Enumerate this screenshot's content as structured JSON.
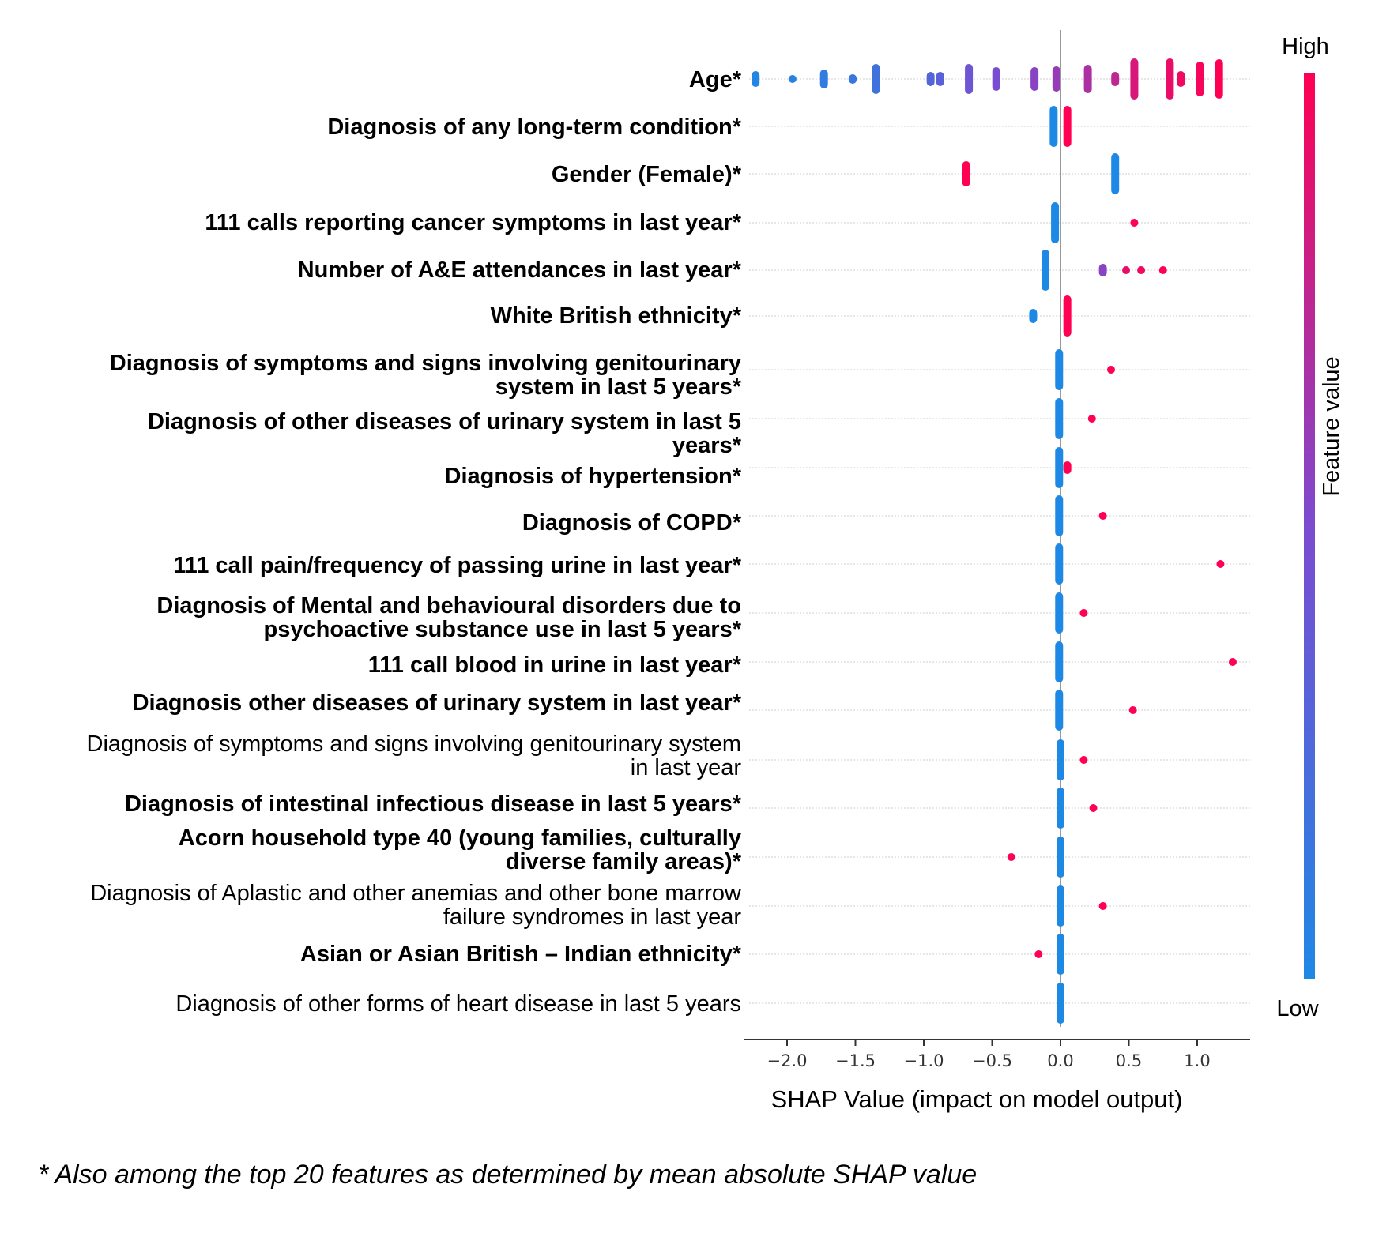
{
  "chart_data": {
    "type": "scatter",
    "subtype": "shap-beeswarm",
    "xlabel": "SHAP Value (impact on model output)",
    "xlim": [
      -2.35,
      1.45
    ],
    "xticks": [
      -2.0,
      -1.5,
      -1.0,
      -0.5,
      0.0,
      0.5,
      1.0
    ],
    "xtick_labels": [
      "−2.0",
      "−1.5",
      "−1.0",
      "−0.5",
      "0.0",
      "0.5",
      "1.0"
    ],
    "grid": "horizontal dotted per feature",
    "colorbar": {
      "label": "Feature value",
      "high": "High",
      "low": "Low",
      "colors": [
        "#1e88e5",
        "#7c4bd0",
        "#ff0052"
      ]
    },
    "features": [
      {
        "name": "Age*",
        "bold": true,
        "points": [
          {
            "x": -2.23,
            "v": 0.02,
            "h": 1
          },
          {
            "x": -1.96,
            "v": 0.06,
            "h": 0.5
          },
          {
            "x": -1.73,
            "v": 0.1,
            "h": 1.2
          },
          {
            "x": -1.52,
            "v": 0.14,
            "h": 0.6
          },
          {
            "x": -1.35,
            "v": 0.18,
            "h": 1.9
          },
          {
            "x": -0.95,
            "v": 0.28,
            "h": 0.9
          },
          {
            "x": -0.88,
            "v": 0.32,
            "h": 0.9
          },
          {
            "x": -0.67,
            "v": 0.42,
            "h": 1.9
          },
          {
            "x": -0.47,
            "v": 0.48,
            "h": 1.5
          },
          {
            "x": -0.19,
            "v": 0.55,
            "h": 1.5
          },
          {
            "x": -0.03,
            "v": 0.6,
            "h": 1.6
          },
          {
            "x": 0.2,
            "v": 0.68,
            "h": 1.8
          },
          {
            "x": 0.4,
            "v": 0.75,
            "h": 0.9
          },
          {
            "x": 0.54,
            "v": 0.85,
            "h": 2.6
          },
          {
            "x": 0.8,
            "v": 0.92,
            "h": 2.6
          },
          {
            "x": 0.88,
            "v": 0.94,
            "h": 1.0
          },
          {
            "x": 1.02,
            "v": 0.97,
            "h": 2.2
          },
          {
            "x": 1.16,
            "v": 1.0,
            "h": 2.5
          }
        ]
      },
      {
        "name": "Diagnosis of any long-term condition*",
        "bold": true,
        "points": [
          {
            "x": -0.05,
            "v": 0.0,
            "h": 2.6
          },
          {
            "x": 0.05,
            "v": 1.0,
            "h": 2.6
          }
        ]
      },
      {
        "name": "Gender (Female)*",
        "bold": true,
        "points": [
          {
            "x": -0.69,
            "v": 1.0,
            "h": 1.6
          },
          {
            "x": 0.4,
            "v": 0.0,
            "h": 2.6
          }
        ]
      },
      {
        "name": "111 calls reporting cancer symptoms in last year*",
        "bold": true,
        "points": [
          {
            "x": -0.04,
            "v": 0.0,
            "h": 2.6
          },
          {
            "x": 0.54,
            "v": 1.0,
            "h": 0.4
          }
        ]
      },
      {
        "name": "Number of A&E attendances in last year*",
        "bold": true,
        "points": [
          {
            "x": -0.11,
            "v": 0.0,
            "h": 2.6
          },
          {
            "x": 0.31,
            "v": 0.55,
            "h": 0.8
          },
          {
            "x": 0.48,
            "v": 0.9,
            "h": 0.4
          },
          {
            "x": 0.59,
            "v": 0.95,
            "h": 0.4
          },
          {
            "x": 0.75,
            "v": 1.0,
            "h": 0.3
          }
        ]
      },
      {
        "name": "White British ethnicity*",
        "bold": true,
        "points": [
          {
            "x": -0.2,
            "v": 0.0,
            "h": 0.9
          },
          {
            "x": 0.05,
            "v": 1.0,
            "h": 2.6
          }
        ]
      },
      {
        "name": "Diagnosis of symptoms and signs involving genitourinary system in last 5 years*",
        "bold": true,
        "points": [
          {
            "x": -0.01,
            "v": 0.0,
            "h": 2.6
          },
          {
            "x": 0.37,
            "v": 1.0,
            "h": 0.4
          }
        ]
      },
      {
        "name": "Diagnosis of other diseases of urinary system in last 5 years*",
        "bold": true,
        "points": [
          {
            "x": -0.01,
            "v": 0.0,
            "h": 2.6
          },
          {
            "x": 0.23,
            "v": 1.0,
            "h": 0.4
          }
        ]
      },
      {
        "name": "Diagnosis of hypertension*",
        "bold": true,
        "points": [
          {
            "x": -0.01,
            "v": 0.0,
            "h": 2.6
          },
          {
            "x": 0.05,
            "v": 1.0,
            "h": 0.8
          }
        ]
      },
      {
        "name": "Diagnosis of COPD*",
        "bold": true,
        "points": [
          {
            "x": -0.01,
            "v": 0.0,
            "h": 2.6
          },
          {
            "x": 0.31,
            "v": 1.0,
            "h": 0.4
          }
        ]
      },
      {
        "name": "111 call pain/frequency of passing urine in last year*",
        "bold": true,
        "points": [
          {
            "x": -0.01,
            "v": 0.0,
            "h": 2.6
          },
          {
            "x": 1.17,
            "v": 1.0,
            "h": 0.3
          }
        ]
      },
      {
        "name": "Diagnosis of Mental and behavioural disorders due to psychoactive substance use in last 5 years*",
        "bold": true,
        "points": [
          {
            "x": -0.01,
            "v": 0.0,
            "h": 2.6
          },
          {
            "x": 0.17,
            "v": 1.0,
            "h": 0.4
          }
        ]
      },
      {
        "name": "111 call blood in urine in last year*",
        "bold": true,
        "points": [
          {
            "x": -0.01,
            "v": 0.0,
            "h": 2.6
          },
          {
            "x": 1.26,
            "v": 1.0,
            "h": 0.3
          }
        ]
      },
      {
        "name": "Diagnosis other diseases of urinary system in last year*",
        "bold": true,
        "points": [
          {
            "x": -0.01,
            "v": 0.0,
            "h": 2.6
          },
          {
            "x": 0.53,
            "v": 1.0,
            "h": 0.3
          }
        ]
      },
      {
        "name": "Diagnosis of symptoms and signs involving genitourinary system in last year",
        "bold": false,
        "points": [
          {
            "x": 0.0,
            "v": 0.0,
            "h": 2.6
          },
          {
            "x": 0.17,
            "v": 1.0,
            "h": 0.3
          }
        ]
      },
      {
        "name": "Diagnosis of intestinal infectious disease in last 5 years*",
        "bold": true,
        "points": [
          {
            "x": 0.0,
            "v": 0.0,
            "h": 2.6
          },
          {
            "x": 0.24,
            "v": 1.0,
            "h": 0.3
          }
        ]
      },
      {
        "name": "Acorn household type 40 (young families, culturally diverse family areas)*",
        "bold": true,
        "points": [
          {
            "x": 0.0,
            "v": 0.0,
            "h": 2.6
          },
          {
            "x": -0.36,
            "v": 1.0,
            "h": 0.3
          }
        ]
      },
      {
        "name": "Diagnosis of Aplastic and other anemias and other bone marrow failure syndromes in last year",
        "bold": false,
        "points": [
          {
            "x": 0.0,
            "v": 0.0,
            "h": 2.6
          },
          {
            "x": 0.31,
            "v": 1.0,
            "h": 0.3
          }
        ]
      },
      {
        "name": "Asian or Asian British – Indian ethnicity*",
        "bold": true,
        "points": [
          {
            "x": 0.0,
            "v": 0.0,
            "h": 2.6
          },
          {
            "x": -0.16,
            "v": 1.0,
            "h": 0.3
          }
        ]
      },
      {
        "name": "Diagnosis of other forms of heart disease in last 5 years",
        "bold": false,
        "points": [
          {
            "x": 0.0,
            "v": 0.0,
            "h": 2.6
          }
        ]
      }
    ]
  },
  "footnote": "* Also among the top 20 features as determined by mean absolute SHAP value"
}
